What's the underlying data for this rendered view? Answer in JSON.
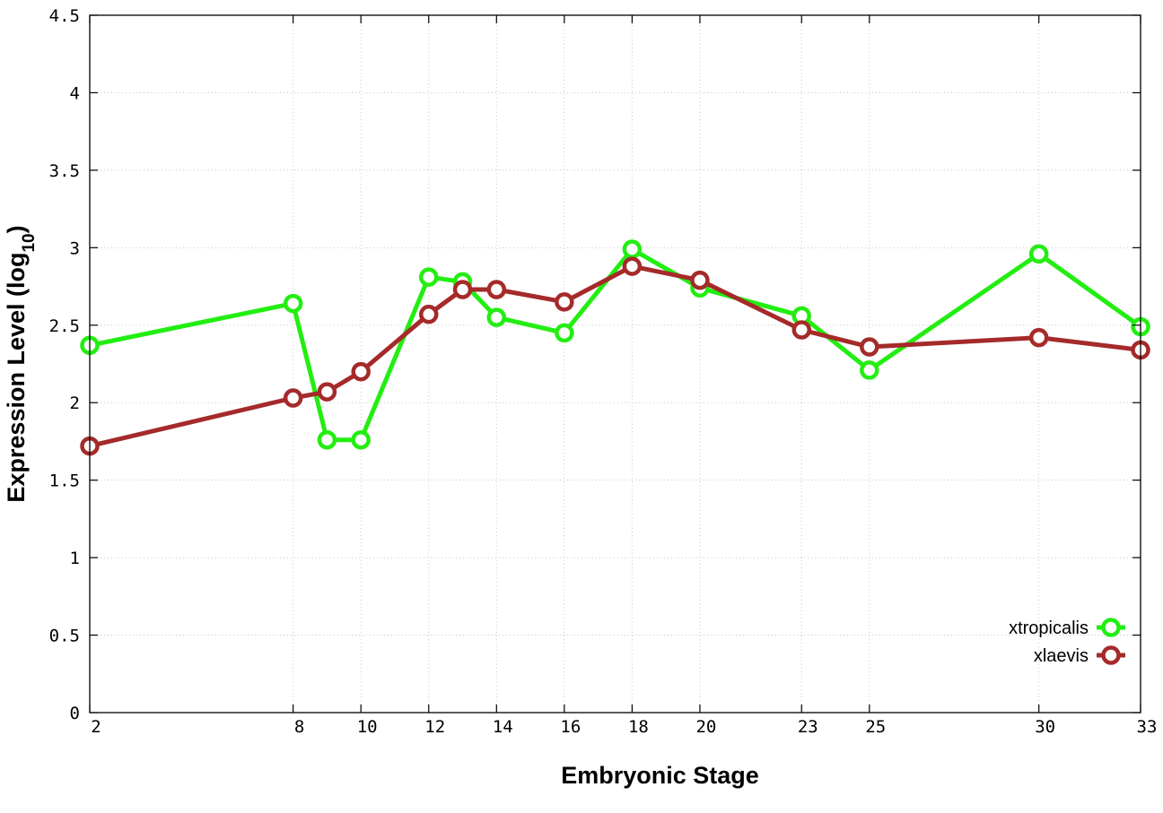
{
  "chart_data": {
    "type": "line",
    "title": "",
    "xlabel": "Embryonic Stage",
    "ylabel_main": "Expression Level (log",
    "ylabel_sub": "10",
    "ylabel_close": ")",
    "x": [
      2,
      8,
      9,
      10,
      12,
      13,
      14,
      16,
      18,
      20,
      23,
      25,
      30,
      33
    ],
    "x_ticks": [
      2,
      8,
      10,
      12,
      14,
      16,
      18,
      20,
      23,
      25,
      30,
      33
    ],
    "x_tick_labels": [
      "2",
      "8",
      "10",
      "12",
      "14",
      "16",
      "18",
      "20",
      "23",
      "25",
      "30",
      "33"
    ],
    "xlim": [
      2,
      33
    ],
    "ylim": [
      0,
      4.5
    ],
    "y_ticks": [
      0,
      0.5,
      1,
      1.5,
      2,
      2.5,
      3,
      3.5,
      4,
      4.5
    ],
    "y_tick_labels": [
      "0",
      "0.5",
      "1",
      "1.5",
      "2",
      "2.5",
      "3",
      "3.5",
      "4",
      "4.5"
    ],
    "grid": true,
    "legend_position": "bottom-right",
    "series": [
      {
        "name": "xtropicalis",
        "color": "#22ee11",
        "values": [
          2.37,
          2.64,
          1.76,
          1.76,
          2.81,
          2.78,
          2.55,
          2.45,
          2.99,
          2.74,
          2.56,
          2.21,
          2.96,
          2.49
        ]
      },
      {
        "name": "xlaevis",
        "color": "#a52a2a",
        "values": [
          1.72,
          2.03,
          2.07,
          2.2,
          2.57,
          2.73,
          2.73,
          2.65,
          2.88,
          2.79,
          2.47,
          2.36,
          2.42,
          2.34
        ]
      }
    ]
  }
}
